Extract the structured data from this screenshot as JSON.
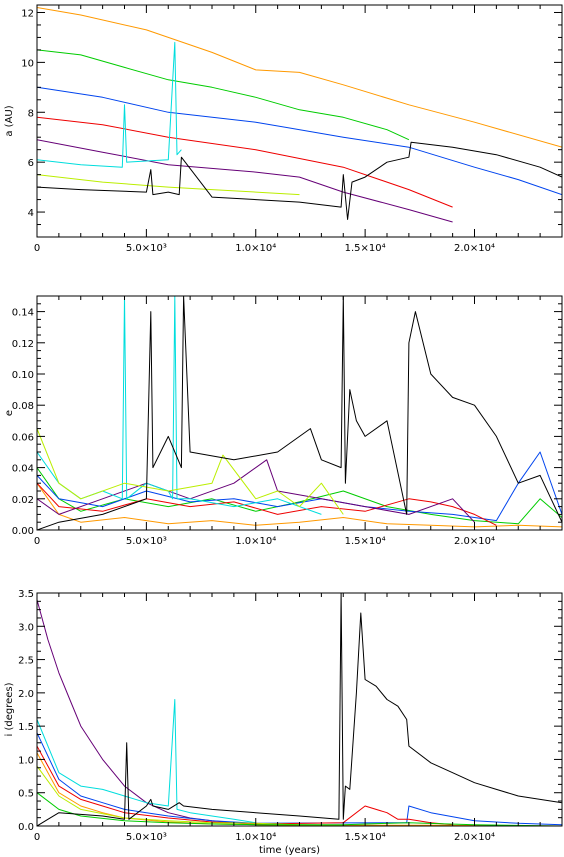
{
  "chart_data": [
    {
      "type": "line",
      "xlabel": "",
      "ylabel": "a (AU)",
      "xlim": [
        0,
        24000
      ],
      "ylim": [
        3,
        12.3
      ],
      "xticks": [
        0,
        5000,
        10000,
        15000,
        20000
      ],
      "xtick_labels": [
        "0",
        "5.0×10³",
        "1.0×10⁴",
        "1.5×10⁴",
        "2.0×10⁴"
      ],
      "yticks": [
        4,
        6,
        8,
        10,
        12
      ],
      "ytick_labels": [
        "4",
        "6",
        "8",
        "10",
        "12"
      ],
      "grid": false,
      "series": [
        {
          "color": "#ff9900",
          "x": [
            0,
            2000,
            5000,
            8000,
            10000,
            12000,
            14000,
            17000,
            20000,
            24000
          ],
          "y": [
            12.2,
            11.9,
            11.3,
            10.4,
            9.7,
            9.6,
            9.1,
            8.3,
            7.6,
            6.6
          ]
        },
        {
          "color": "#00cc00",
          "x": [
            0,
            2000,
            4000,
            6000,
            8000,
            10000,
            12000,
            14000,
            16000,
            17000
          ],
          "y": [
            10.5,
            10.3,
            9.8,
            9.3,
            9.0,
            8.6,
            8.1,
            7.8,
            7.3,
            6.9
          ]
        },
        {
          "color": "#0044ee",
          "x": [
            0,
            3000,
            6000,
            10000,
            14000,
            17000,
            20000,
            22000,
            24000
          ],
          "y": [
            9.0,
            8.6,
            8.0,
            7.6,
            7.0,
            6.6,
            5.8,
            5.3,
            4.7
          ]
        },
        {
          "color": "#ee0000",
          "x": [
            0,
            3000,
            6000,
            10000,
            14000,
            17000,
            19000
          ],
          "y": [
            7.8,
            7.5,
            7.0,
            6.5,
            5.8,
            4.9,
            4.2
          ]
        },
        {
          "color": "#660077",
          "x": [
            0,
            3000,
            6000,
            10000,
            12000,
            14000,
            17000,
            19000
          ],
          "y": [
            6.9,
            6.4,
            5.9,
            5.6,
            5.4,
            4.8,
            4.1,
            3.6
          ]
        },
        {
          "color": "#00dddd",
          "x": [
            0,
            2000,
            3900,
            4000,
            4100,
            6000,
            6300,
            6400,
            6600
          ],
          "y": [
            6.1,
            5.9,
            5.8,
            8.3,
            6.0,
            6.1,
            10.8,
            6.3,
            6.5
          ]
        },
        {
          "color": "#bbee00",
          "x": [
            0,
            3000,
            6000,
            8000,
            10000,
            12000
          ],
          "y": [
            5.5,
            5.2,
            5.0,
            4.9,
            4.8,
            4.7
          ]
        },
        {
          "color": "#000000",
          "x": [
            0,
            2000,
            5000,
            5200,
            5300,
            6000,
            6500,
            6600,
            8000,
            10000,
            12000,
            13900,
            14000,
            14200,
            14400,
            15000,
            16000,
            17000,
            17100,
            19000,
            21000,
            23000,
            24000
          ],
          "y": [
            5.0,
            4.9,
            4.8,
            5.7,
            4.7,
            4.8,
            4.7,
            6.2,
            4.6,
            4.5,
            4.4,
            4.2,
            5.5,
            3.7,
            5.2,
            5.4,
            6.0,
            6.2,
            6.8,
            6.6,
            6.3,
            5.8,
            5.4
          ]
        }
      ]
    },
    {
      "type": "line",
      "xlabel": "",
      "ylabel": "e",
      "xlim": [
        0,
        24000
      ],
      "ylim": [
        0,
        0.15
      ],
      "xticks": [
        0,
        5000,
        10000,
        15000,
        20000
      ],
      "xtick_labels": [
        "0",
        "5.0×10³",
        "1.0×10⁴",
        "1.5×10⁴",
        "2.0×10⁴"
      ],
      "yticks": [
        0,
        0.02,
        0.04,
        0.06,
        0.08,
        0.1,
        0.12,
        0.14
      ],
      "ytick_labels": [
        "0.00",
        "0.02",
        "0.04",
        "0.06",
        "0.08",
        "0.10",
        "0.12",
        "0.14"
      ],
      "grid": false,
      "series": [
        {
          "color": "#ff9900",
          "x": [
            0,
            1000,
            2000,
            4000,
            6000,
            8000,
            10000,
            12000,
            14000,
            16000,
            18000,
            20000,
            22000,
            24000
          ],
          "y": [
            0.03,
            0.01,
            0.005,
            0.008,
            0.004,
            0.006,
            0.003,
            0.005,
            0.008,
            0.004,
            0.003,
            0.002,
            0.003,
            0.002
          ]
        },
        {
          "color": "#00cc00",
          "x": [
            0,
            1000,
            2000,
            4000,
            6000,
            8000,
            10000,
            12000,
            14000,
            16000,
            18000,
            20000,
            22000,
            23000,
            24000
          ],
          "y": [
            0.04,
            0.02,
            0.012,
            0.02,
            0.015,
            0.02,
            0.012,
            0.018,
            0.025,
            0.015,
            0.01,
            0.006,
            0.004,
            0.02,
            0.008
          ]
        },
        {
          "color": "#0044ee",
          "x": [
            0,
            1000,
            3000,
            5000,
            7000,
            9000,
            11000,
            13000,
            15000,
            17000,
            19000,
            21000,
            22000,
            23000,
            24000
          ],
          "y": [
            0.035,
            0.02,
            0.015,
            0.025,
            0.018,
            0.02,
            0.015,
            0.02,
            0.015,
            0.012,
            0.01,
            0.006,
            0.03,
            0.05,
            0.01
          ]
        },
        {
          "color": "#ee0000",
          "x": [
            0,
            1000,
            3000,
            5000,
            7000,
            9000,
            11000,
            13000,
            15000,
            17000,
            18000,
            19000,
            20000,
            21000
          ],
          "y": [
            0.03,
            0.015,
            0.012,
            0.02,
            0.015,
            0.018,
            0.01,
            0.015,
            0.012,
            0.02,
            0.018,
            0.015,
            0.01,
            0.003
          ]
        },
        {
          "color": "#660077",
          "x": [
            0,
            1000,
            3000,
            5000,
            7000,
            9000,
            10500,
            11000,
            13000,
            15000,
            17000,
            19000,
            20000
          ],
          "y": [
            0.02,
            0.01,
            0.02,
            0.03,
            0.02,
            0.03,
            0.045,
            0.025,
            0.02,
            0.015,
            0.01,
            0.02,
            0.005
          ]
        },
        {
          "color": "#00dddd",
          "x": [
            0,
            1000,
            2000,
            3000,
            3900,
            4000,
            4100,
            5000,
            6000,
            6200,
            6300,
            6400,
            7000,
            9000,
            11000,
            13000
          ],
          "y": [
            0.05,
            0.03,
            0.02,
            0.025,
            0.02,
            0.15,
            0.02,
            0.03,
            0.025,
            0.02,
            0.15,
            0.02,
            0.02,
            0.015,
            0.02,
            0.01
          ]
        },
        {
          "color": "#bbee00",
          "x": [
            0,
            1000,
            2000,
            4000,
            6000,
            8000,
            8500,
            10000,
            11000,
            12000,
            13000,
            14000
          ],
          "y": [
            0.065,
            0.03,
            0.02,
            0.03,
            0.025,
            0.03,
            0.048,
            0.02,
            0.025,
            0.015,
            0.03,
            0.01
          ]
        },
        {
          "color": "#000000",
          "x": [
            0,
            1000,
            3000,
            5000,
            5200,
            5300,
            6000,
            6600,
            6700,
            7000,
            9000,
            11000,
            12500,
            13000,
            13900,
            14000,
            14100,
            14300,
            14600,
            15000,
            16000,
            16900,
            17000,
            17300,
            18000,
            19000,
            20000,
            21000,
            22000,
            23000,
            24000
          ],
          "y": [
            0.0,
            0.005,
            0.01,
            0.02,
            0.14,
            0.04,
            0.06,
            0.04,
            0.15,
            0.05,
            0.045,
            0.05,
            0.065,
            0.045,
            0.04,
            0.15,
            0.03,
            0.09,
            0.07,
            0.06,
            0.07,
            0.01,
            0.12,
            0.14,
            0.1,
            0.085,
            0.08,
            0.06,
            0.03,
            0.035,
            0.005
          ]
        }
      ]
    },
    {
      "type": "line",
      "xlabel": "time (years)",
      "ylabel": "i (degrees)",
      "xlim": [
        0,
        24000
      ],
      "ylim": [
        0,
        3.5
      ],
      "xticks": [
        0,
        5000,
        10000,
        15000,
        20000
      ],
      "xtick_labels": [
        "0",
        "5.0×10³",
        "1.0×10⁴",
        "1.5×10⁴",
        "2.0×10⁴"
      ],
      "yticks": [
        0,
        0.5,
        1.0,
        1.5,
        2.0,
        2.5,
        3.0,
        3.5
      ],
      "ytick_labels": [
        "0.0",
        "0.5",
        "1.0",
        "1.5",
        "2.0",
        "2.5",
        "3.0",
        "3.5"
      ],
      "grid": false,
      "series": [
        {
          "color": "#660077",
          "x": [
            0,
            500,
            1000,
            1500,
            2000,
            3000,
            4000,
            5000,
            6000,
            7000,
            8000,
            9000,
            10000
          ],
          "y": [
            3.4,
            2.8,
            2.3,
            1.9,
            1.5,
            1.0,
            0.6,
            0.35,
            0.2,
            0.12,
            0.08,
            0.05,
            0.03
          ]
        },
        {
          "color": "#00dddd",
          "x": [
            0,
            1000,
            2000,
            3000,
            4000,
            5000,
            6000,
            6300,
            6400,
            7000,
            8000,
            9000,
            10000
          ],
          "y": [
            1.6,
            0.8,
            0.6,
            0.55,
            0.45,
            0.35,
            0.3,
            1.9,
            0.25,
            0.2,
            0.15,
            0.1,
            0.05
          ]
        },
        {
          "color": "#0044ee",
          "x": [
            0,
            1000,
            2000,
            3000,
            4000,
            5000,
            6000,
            8000,
            10000,
            16900,
            17000,
            18000,
            20000,
            22000,
            24000
          ],
          "y": [
            1.4,
            0.7,
            0.45,
            0.35,
            0.25,
            0.2,
            0.15,
            0.08,
            0.04,
            0.05,
            0.3,
            0.2,
            0.08,
            0.04,
            0.02
          ]
        },
        {
          "color": "#ee0000",
          "x": [
            0,
            1000,
            2000,
            3000,
            4000,
            6000,
            8000,
            10000,
            14000,
            15000,
            16000,
            16500,
            17000,
            18000,
            19000
          ],
          "y": [
            1.2,
            0.6,
            0.4,
            0.3,
            0.2,
            0.12,
            0.06,
            0.03,
            0.05,
            0.3,
            0.2,
            0.1,
            0.1,
            0.05,
            0.02
          ]
        },
        {
          "color": "#ff9900",
          "x": [
            0,
            1000,
            2000,
            3000,
            4000,
            6000,
            8000,
            10000,
            12000,
            14000,
            18000,
            24000
          ],
          "y": [
            1.1,
            0.5,
            0.3,
            0.2,
            0.12,
            0.06,
            0.03,
            0.02,
            0.01,
            0.01,
            0.01,
            0.0
          ]
        },
        {
          "color": "#bbee00",
          "x": [
            0,
            1000,
            2000,
            4000,
            6000,
            8000,
            10000,
            12000,
            14000
          ],
          "y": [
            0.9,
            0.45,
            0.25,
            0.12,
            0.08,
            0.05,
            0.04,
            0.02,
            0.01
          ]
        },
        {
          "color": "#00cc00",
          "x": [
            0,
            1000,
            2000,
            4000,
            6000,
            8000,
            10000,
            14000,
            17000,
            20000,
            24000
          ],
          "y": [
            0.5,
            0.25,
            0.15,
            0.08,
            0.05,
            0.03,
            0.02,
            0.02,
            0.05,
            0.02,
            0.0
          ]
        },
        {
          "color": "#000000",
          "x": [
            0,
            500,
            1000,
            3000,
            4000,
            4100,
            4200,
            5000,
            5200,
            5300,
            6000,
            6500,
            6700,
            8000,
            10000,
            12000,
            13800,
            13900,
            14000,
            14100,
            14300,
            14600,
            14800,
            15000,
            15500,
            16000,
            16500,
            16900,
            17000,
            18000,
            19000,
            20000,
            21000,
            22000,
            24000
          ],
          "y": [
            0.0,
            0.1,
            0.2,
            0.15,
            0.1,
            1.25,
            0.1,
            0.3,
            0.4,
            0.3,
            0.25,
            0.35,
            0.3,
            0.25,
            0.2,
            0.15,
            0.1,
            3.5,
            0.1,
            0.6,
            0.55,
            2.0,
            3.2,
            2.2,
            2.1,
            1.9,
            1.8,
            1.6,
            1.2,
            0.95,
            0.8,
            0.65,
            0.55,
            0.45,
            0.35
          ]
        }
      ]
    }
  ]
}
